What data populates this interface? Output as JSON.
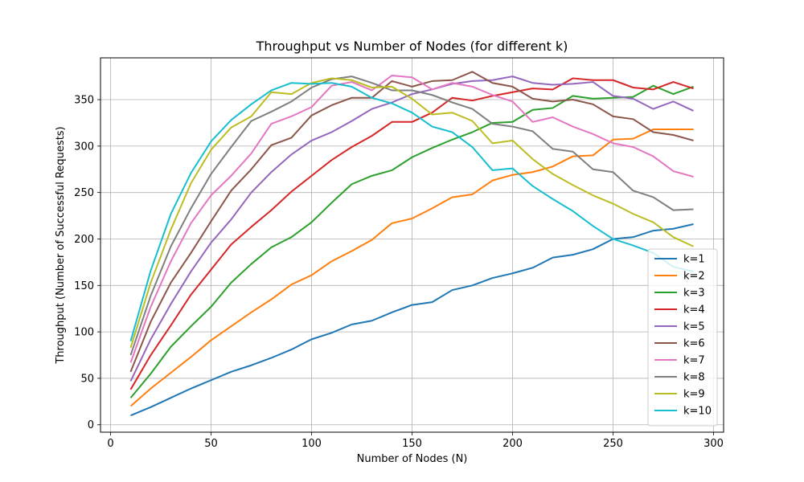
{
  "chart_data": {
    "type": "line",
    "title": "Throughput vs Number of Nodes (for different k)",
    "xlabel": "Number of Nodes (N)",
    "ylabel": "Throughput (Number of Successful Requests)",
    "xlim": [
      -5,
      305
    ],
    "ylim": [
      -8,
      395
    ],
    "xticks": [
      0,
      50,
      100,
      150,
      200,
      250,
      300
    ],
    "yticks": [
      0,
      50,
      100,
      150,
      200,
      250,
      300,
      350
    ],
    "grid": true,
    "legend_position": "lower-right",
    "x": [
      10,
      20,
      30,
      40,
      50,
      60,
      70,
      80,
      90,
      100,
      110,
      120,
      130,
      140,
      150,
      160,
      170,
      180,
      190,
      200,
      210,
      220,
      230,
      240,
      250,
      260,
      270,
      280,
      290
    ],
    "series": [
      {
        "name": "k=1",
        "color": "#1f77b4",
        "values": [
          10,
          19,
          29,
          39,
          48,
          57,
          64,
          72,
          81,
          92,
          99,
          108,
          112,
          121,
          129,
          132,
          145,
          150,
          158,
          163,
          169,
          180,
          183,
          189,
          200,
          202,
          209,
          211,
          216
        ]
      },
      {
        "name": "k=2",
        "color": "#ff7f0e",
        "values": [
          20,
          39,
          56,
          73,
          91,
          106,
          121,
          135,
          151,
          161,
          176,
          187,
          199,
          217,
          222,
          233,
          245,
          248,
          263,
          269,
          272,
          278,
          289,
          290,
          307,
          308,
          318,
          318,
          318
        ]
      },
      {
        "name": "k=3",
        "color": "#2ca02c",
        "values": [
          29,
          55,
          84,
          106,
          127,
          153,
          173,
          191,
          202,
          218,
          239,
          259,
          268,
          274,
          288,
          298,
          307,
          315,
          325,
          326,
          339,
          341,
          354,
          351,
          352,
          353,
          365,
          356,
          364
        ]
      },
      {
        "name": "k=4",
        "color": "#d62728",
        "values": [
          38,
          75,
          107,
          140,
          167,
          194,
          213,
          231,
          251,
          268,
          285,
          299,
          311,
          326,
          326,
          336,
          352,
          349,
          354,
          358,
          362,
          361,
          373,
          371,
          371,
          363,
          361,
          369,
          362
        ]
      },
      {
        "name": "k=5",
        "color": "#9467bd",
        "values": [
          47,
          92,
          130,
          165,
          196,
          221,
          250,
          272,
          291,
          306,
          315,
          327,
          340,
          347,
          356,
          361,
          367,
          370,
          371,
          375,
          368,
          366,
          367,
          369,
          354,
          351,
          340,
          348,
          338
        ]
      },
      {
        "name": "k=6",
        "color": "#8c564b",
        "values": [
          57,
          111,
          153,
          185,
          219,
          252,
          275,
          301,
          309,
          333,
          344,
          352,
          352,
          370,
          364,
          370,
          371,
          380,
          368,
          364,
          351,
          348,
          350,
          345,
          332,
          329,
          315,
          312,
          306
        ]
      },
      {
        "name": "k=7",
        "color": "#e377c2",
        "values": [
          67,
          127,
          176,
          217,
          247,
          268,
          292,
          324,
          332,
          342,
          365,
          369,
          360,
          376,
          374,
          361,
          368,
          364,
          355,
          348,
          326,
          331,
          321,
          313,
          303,
          299,
          289,
          273,
          267
        ]
      },
      {
        "name": "k=8",
        "color": "#7f7f7f",
        "values": [
          75,
          139,
          192,
          233,
          270,
          299,
          327,
          337,
          348,
          363,
          372,
          375,
          368,
          360,
          360,
          355,
          347,
          340,
          324,
          321,
          316,
          297,
          294,
          275,
          272,
          252,
          245,
          231,
          232
        ]
      },
      {
        "name": "k=9",
        "color": "#bcbd22",
        "values": [
          83,
          153,
          210,
          260,
          296,
          320,
          332,
          358,
          356,
          368,
          373,
          371,
          363,
          364,
          351,
          334,
          336,
          327,
          303,
          306,
          286,
          270,
          258,
          247,
          238,
          227,
          218,
          202,
          192
        ]
      },
      {
        "name": "k=10",
        "color": "#17becf",
        "values": [
          90,
          166,
          227,
          271,
          305,
          328,
          345,
          360,
          368,
          367,
          368,
          364,
          352,
          346,
          336,
          321,
          315,
          299,
          274,
          276,
          257,
          243,
          230,
          214,
          200,
          193,
          185,
          170,
          165
        ]
      }
    ]
  }
}
